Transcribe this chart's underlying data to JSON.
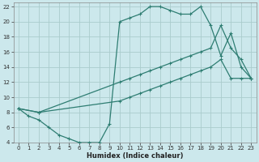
{
  "xlabel": "Humidex (Indice chaleur)",
  "bg_color": "#cce8ec",
  "grid_color": "#aacccc",
  "line_color": "#2e7d72",
  "xlim": [
    -0.5,
    23.5
  ],
  "ylim": [
    4,
    22.5
  ],
  "xticks": [
    0,
    1,
    2,
    3,
    4,
    5,
    6,
    7,
    8,
    9,
    10,
    11,
    12,
    13,
    14,
    15,
    16,
    17,
    18,
    19,
    20,
    21,
    22,
    23
  ],
  "yticks": [
    4,
    6,
    8,
    10,
    12,
    14,
    16,
    18,
    20,
    22
  ],
  "line1_x": [
    0,
    1,
    2,
    3,
    4,
    5,
    6,
    7,
    8,
    9,
    10,
    11,
    12,
    13,
    14,
    15,
    16,
    17,
    18,
    19,
    20,
    21,
    22,
    23
  ],
  "line1_y": [
    8.5,
    7.5,
    7.0,
    6.0,
    5.0,
    4.5,
    4.0,
    4.0,
    4.0,
    6.5,
    20.0,
    20.5,
    21.0,
    22.0,
    22.0,
    21.5,
    21.0,
    21.0,
    22.0,
    19.5,
    15.5,
    18.5,
    14.0,
    12.5
  ],
  "line2_x": [
    0,
    2,
    10,
    11,
    12,
    13,
    14,
    15,
    16,
    17,
    18,
    19,
    20,
    21,
    22,
    23
  ],
  "line2_y": [
    8.5,
    8.0,
    12.0,
    12.5,
    13.0,
    13.5,
    14.0,
    14.5,
    15.0,
    15.5,
    16.0,
    16.5,
    19.5,
    16.5,
    15.0,
    12.5
  ],
  "line3_x": [
    0,
    2,
    10,
    11,
    12,
    13,
    14,
    15,
    16,
    17,
    18,
    19,
    20,
    21,
    22,
    23
  ],
  "line3_y": [
    8.5,
    8.0,
    9.5,
    10.0,
    10.5,
    11.0,
    11.5,
    12.0,
    12.5,
    13.0,
    13.5,
    14.0,
    15.0,
    12.5,
    12.5,
    12.5
  ]
}
